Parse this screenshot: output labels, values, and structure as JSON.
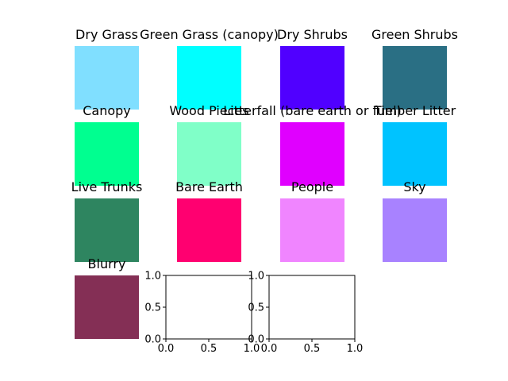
{
  "chart_data": {
    "type": "color-swatch-grid",
    "swatches": [
      {
        "label": "Dry Grass",
        "color": "#80dfff"
      },
      {
        "label": "Green Grass (canopy)",
        "color": "#00ffff"
      },
      {
        "label": "Dry Shrubs",
        "color": "#5000ff"
      },
      {
        "label": "Green Shrubs",
        "color": "#2a6f84"
      },
      {
        "label": "Canopy",
        "color": "#00ff90"
      },
      {
        "label": "Wood Pieces",
        "color": "#80ffc8"
      },
      {
        "label": "Litterfall (bare earth or fuel)",
        "color": "#e000ff"
      },
      {
        "label": "Timber Litter",
        "color": "#00c3ff"
      },
      {
        "label": "Live Trunks",
        "color": "#2e8560"
      },
      {
        "label": "Bare Earth",
        "color": "#ff0070"
      },
      {
        "label": "People",
        "color": "#f085ff"
      },
      {
        "label": "Sky",
        "color": "#a882ff"
      },
      {
        "label": "Blurry",
        "color": "#842f55"
      }
    ],
    "empty_axes": [
      {
        "xlim": [
          0.0,
          1.0
        ],
        "ylim": [
          0.0,
          1.0
        ],
        "xticks": [
          "0.0",
          "0.5",
          "1.0"
        ],
        "yticks": [
          "0.0",
          "0.5",
          "1.0"
        ]
      },
      {
        "xlim": [
          0.0,
          1.0
        ],
        "ylim": [
          0.0,
          1.0
        ],
        "xticks": [
          "0.0",
          "0.5",
          "1.0"
        ],
        "yticks": [
          "0.0",
          "0.5",
          "1.0"
        ]
      }
    ]
  }
}
